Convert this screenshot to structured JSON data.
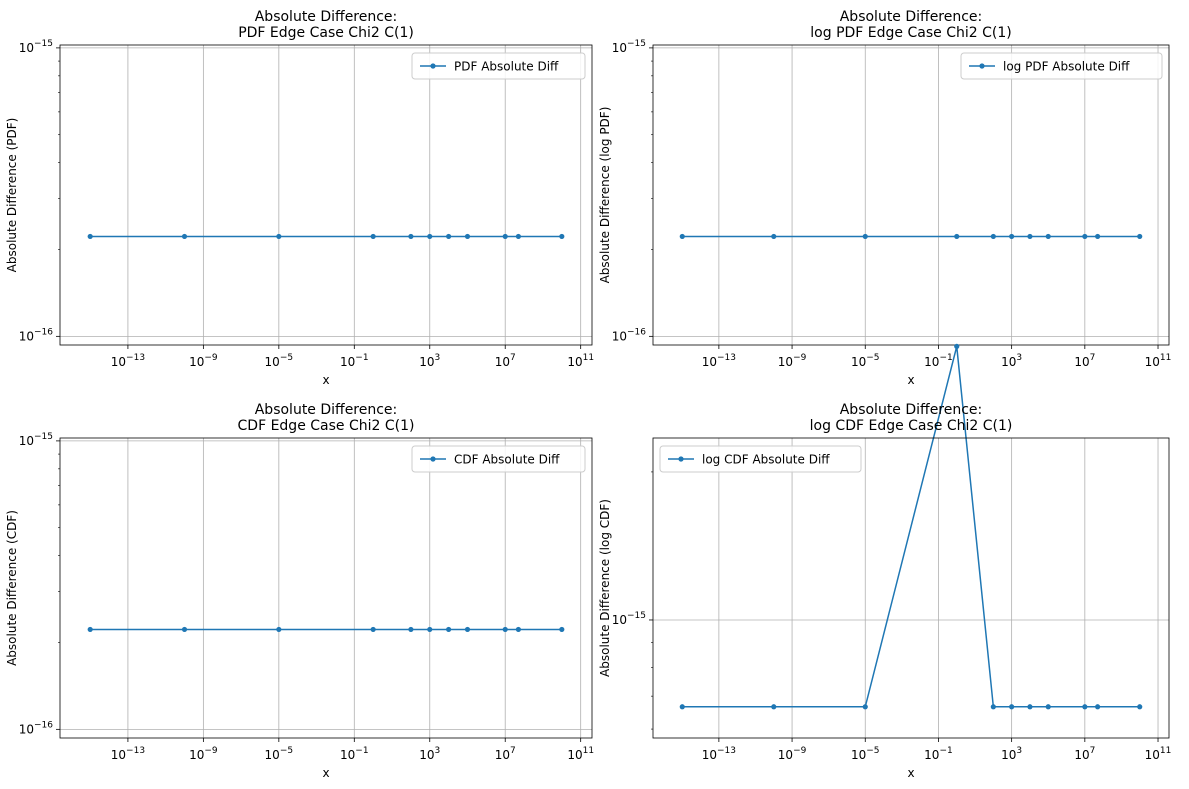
{
  "chart_data": [
    {
      "type": "line",
      "title": "Absolute Difference:\nPDF Edge Case Chi2 C(1)",
      "title_lines": [
        "Absolute Difference:",
        "PDF Edge Case Chi2 C(1)"
      ],
      "xlabel": "x",
      "ylabel": "Absolute Difference (PDF)",
      "xscale": "log",
      "yscale": "log",
      "xlim_exp": [
        -16.6,
        11.6
      ],
      "ylim_exp": [
        -16.03,
        -14.99
      ],
      "xticks_exp": [
        -13,
        -9,
        -5,
        -1,
        3,
        7,
        11
      ],
      "yticks": [
        {
          "exp": -15,
          "label": "10",
          "sup": "−15"
        },
        {
          "exp": -16,
          "label": "10",
          "sup": "−16"
        }
      ],
      "grid": true,
      "legend_position": "upper right",
      "series": [
        {
          "name": "PDF Absolute Diff",
          "color": "#1f77b4",
          "marker": "circle",
          "x": [
            1e-15,
            1e-10,
            1e-05,
            1,
            100,
            1000,
            10000,
            100000,
            10000000,
            50000000,
            10000000000
          ],
          "y": [
            2.22e-16,
            2.22e-16,
            2.22e-16,
            2.22e-16,
            2.22e-16,
            2.22e-16,
            2.22e-16,
            2.22e-16,
            2.22e-16,
            2.22e-16,
            2.22e-16
          ]
        }
      ]
    },
    {
      "type": "line",
      "title": "Absolute Difference:\nlog PDF Edge Case Chi2 C(1)",
      "title_lines": [
        "Absolute Difference:",
        "log PDF Edge Case Chi2 C(1)"
      ],
      "xlabel": "x",
      "ylabel": "Absolute Difference (log PDF)",
      "xscale": "log",
      "yscale": "log",
      "xlim_exp": [
        -16.6,
        11.6
      ],
      "ylim_exp": [
        -16.03,
        -14.99
      ],
      "xticks_exp": [
        -13,
        -9,
        -5,
        -1,
        3,
        7,
        11
      ],
      "yticks": [
        {
          "exp": -15,
          "label": "10",
          "sup": "−15"
        },
        {
          "exp": -16,
          "label": "10",
          "sup": "−16"
        }
      ],
      "grid": true,
      "legend_position": "upper right",
      "series": [
        {
          "name": "log PDF Absolute Diff",
          "color": "#1f77b4",
          "marker": "circle",
          "x": [
            1e-15,
            1e-10,
            1e-05,
            1,
            100,
            1000,
            10000,
            100000,
            10000000,
            50000000,
            10000000000
          ],
          "y": [
            2.22e-16,
            2.22e-16,
            2.22e-16,
            2.22e-16,
            2.22e-16,
            2.22e-16,
            2.22e-16,
            2.22e-16,
            2.22e-16,
            2.22e-16,
            2.22e-16
          ]
        }
      ]
    },
    {
      "type": "line",
      "title": "Absolute Difference:\nCDF Edge Case Chi2 C(1)",
      "title_lines": [
        "Absolute Difference:",
        "CDF Edge Case Chi2 C(1)"
      ],
      "xlabel": "x",
      "ylabel": "Absolute Difference (CDF)",
      "xscale": "log",
      "yscale": "log",
      "xlim_exp": [
        -16.6,
        11.6
      ],
      "ylim_exp": [
        -16.03,
        -14.99
      ],
      "xticks_exp": [
        -13,
        -9,
        -5,
        -1,
        3,
        7,
        11
      ],
      "yticks": [
        {
          "exp": -15,
          "label": "10",
          "sup": "−15"
        },
        {
          "exp": -16,
          "label": "10",
          "sup": "−16"
        }
      ],
      "grid": true,
      "legend_position": "upper right",
      "series": [
        {
          "name": "CDF Absolute Diff",
          "color": "#1f77b4",
          "marker": "circle",
          "x": [
            1e-15,
            1e-10,
            1e-05,
            1,
            100,
            1000,
            10000,
            100000,
            10000000,
            50000000,
            10000000000
          ],
          "y": [
            2.22e-16,
            2.22e-16,
            2.22e-16,
            2.22e-16,
            2.22e-16,
            2.22e-16,
            2.22e-16,
            2.22e-16,
            2.22e-16,
            2.22e-16,
            2.22e-16
          ]
        }
      ]
    },
    {
      "type": "line",
      "title": "Absolute Difference:\nlog CDF Edge Case Chi2 C(1)",
      "title_lines": [
        "Absolute Difference:",
        "log CDF Edge Case Chi2 C(1)"
      ],
      "xlabel": "x",
      "ylabel": "Absolute Difference (log CDF)",
      "xscale": "log",
      "yscale": "log",
      "xlim_exp": [
        -16.6,
        11.6
      ],
      "ylim_exp": [
        -15.24,
        -14.63
      ],
      "xticks_exp": [
        -13,
        -9,
        -5,
        -1,
        3,
        7,
        11
      ],
      "yticks": [
        {
          "exp": -15,
          "label": "10",
          "sup": "−15"
        }
      ],
      "grid": true,
      "legend_position": "upper left",
      "series": [
        {
          "name": "log CDF Absolute Diff",
          "color": "#1f77b4",
          "marker": "circle",
          "x": [
            1e-15,
            1e-10,
            1e-05,
            1,
            100,
            1000,
            10000,
            100000,
            10000000,
            50000000,
            10000000000
          ],
          "y": [
            6.66e-16,
            6.66e-16,
            6.66e-16,
            3.6e-15,
            6.66e-16,
            6.66e-16,
            6.66e-16,
            6.66e-16,
            6.66e-16,
            6.66e-16,
            6.66e-16
          ]
        }
      ]
    }
  ]
}
